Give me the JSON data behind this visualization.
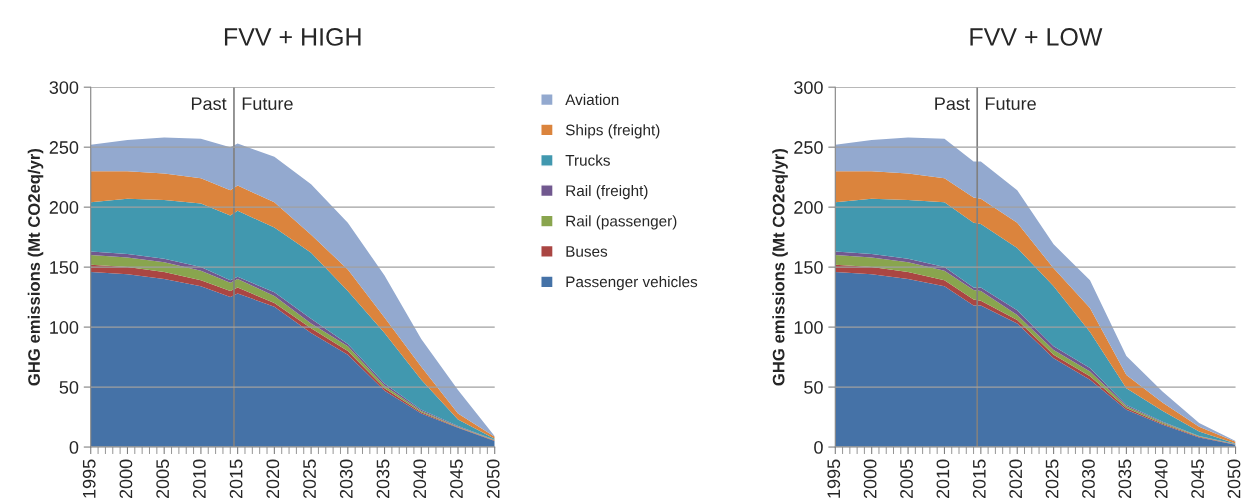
{
  "chart_data": [
    {
      "type": "area",
      "stacked": true,
      "title": "FVV + HIGH",
      "ylabel": "GHG emissions (Mt CO2eq/yr)",
      "x": [
        1995,
        2000,
        2005,
        2010,
        2014,
        2015,
        2020,
        2025,
        2030,
        2035,
        2040,
        2045,
        2050
      ],
      "xlim": [
        1995,
        2050
      ],
      "xticks": [
        1995,
        2000,
        2005,
        2010,
        2015,
        2020,
        2025,
        2030,
        2035,
        2040,
        2045,
        2050
      ],
      "ylim": [
        0,
        300
      ],
      "yticks": [
        0,
        50,
        100,
        150,
        200,
        250,
        300
      ],
      "grid": "y",
      "legend": "right",
      "ref_lines": [
        {
          "axis": "x",
          "value": 2014.5,
          "color": "#808080"
        }
      ],
      "annotations": [
        "Past",
        "Future"
      ],
      "series": [
        {
          "name": "Passenger vehicles",
          "color": "#4572a7",
          "values": [
            146,
            144,
            140,
            134,
            125,
            128,
            117,
            95,
            77,
            47,
            28,
            16,
            5
          ]
        },
        {
          "name": "Buses",
          "color": "#aa4643",
          "values": [
            6,
            6,
            6,
            5,
            5,
            5,
            3,
            4,
            3,
            2,
            1,
            0.5,
            0.5
          ]
        },
        {
          "name": "Rail (passenger)",
          "color": "#89a54e",
          "values": [
            8,
            8,
            8,
            8,
            7,
            7,
            6,
            4,
            4,
            2,
            1,
            0.5,
            0.3
          ]
        },
        {
          "name": "Rail (freight)",
          "color": "#71588f",
          "values": [
            3,
            3,
            3,
            3,
            2,
            2,
            3,
            4,
            2,
            2,
            1,
            0.5,
            0.2
          ]
        },
        {
          "name": "Trucks",
          "color": "#4198af",
          "values": [
            41,
            46,
            49,
            53,
            54,
            55,
            54,
            55,
            44,
            42,
            25,
            5.5,
            1
          ]
        },
        {
          "name": "Ships (freight)",
          "color": "#db843d",
          "values": [
            26,
            23,
            22,
            21,
            21,
            21,
            21,
            15,
            18,
            13,
            11,
            5,
            1.5
          ]
        },
        {
          "name": "Aviation",
          "color": "#93a9cf",
          "values": [
            22,
            26,
            30,
            33,
            36,
            35,
            38,
            42,
            39,
            35,
            23,
            19.5,
            0.5
          ]
        }
      ]
    },
    {
      "type": "area",
      "stacked": true,
      "title": "FVV + LOW",
      "ylabel": "GHG emissions (Mt CO2eq/yr)",
      "x": [
        1995,
        2000,
        2005,
        2010,
        2014,
        2015,
        2020,
        2025,
        2030,
        2035,
        2040,
        2045,
        2050
      ],
      "xlim": [
        1995,
        2050
      ],
      "xticks": [
        1995,
        2000,
        2005,
        2010,
        2015,
        2020,
        2025,
        2030,
        2035,
        2040,
        2045,
        2050
      ],
      "ylim": [
        0,
        300
      ],
      "yticks": [
        0,
        50,
        100,
        150,
        200,
        250,
        300
      ],
      "grid": "y",
      "ref_lines": [
        {
          "axis": "x",
          "value": 2014.5,
          "color": "#808080"
        }
      ],
      "annotations": [
        "Past",
        "Future"
      ],
      "series": [
        {
          "color": "#4572a7",
          "values": [
            146,
            144,
            140,
            134,
            118,
            118,
            103,
            74,
            56,
            31,
            18.6,
            8,
            2
          ]
        },
        {
          "color": "#aa4643",
          "values": [
            6,
            6,
            6,
            5,
            5,
            4,
            3,
            3,
            3,
            1.5,
            0.9,
            0.5,
            0.2
          ]
        },
        {
          "color": "#89a54e",
          "values": [
            8,
            8,
            8,
            8,
            8,
            8,
            4,
            4,
            4,
            1.5,
            1,
            0.5,
            0.2
          ]
        },
        {
          "color": "#71588f",
          "values": [
            3,
            3,
            3,
            3,
            2,
            3,
            4,
            3,
            3,
            1,
            0.5,
            0.3,
            0.1
          ]
        },
        {
          "color": "#4198af",
          "values": [
            41,
            46,
            49,
            54,
            54,
            53,
            52,
            50,
            30,
            14,
            9,
            3.7,
            0.5
          ]
        },
        {
          "color": "#db843d",
          "values": [
            26,
            23,
            22,
            20,
            21,
            21,
            21,
            15,
            20,
            11,
            7,
            4,
            1.5
          ]
        },
        {
          "color": "#93a9cf",
          "values": [
            22,
            26,
            30,
            33,
            30,
            31,
            27,
            20,
            23,
            16,
            9,
            3,
            0.5
          ]
        }
      ]
    }
  ]
}
